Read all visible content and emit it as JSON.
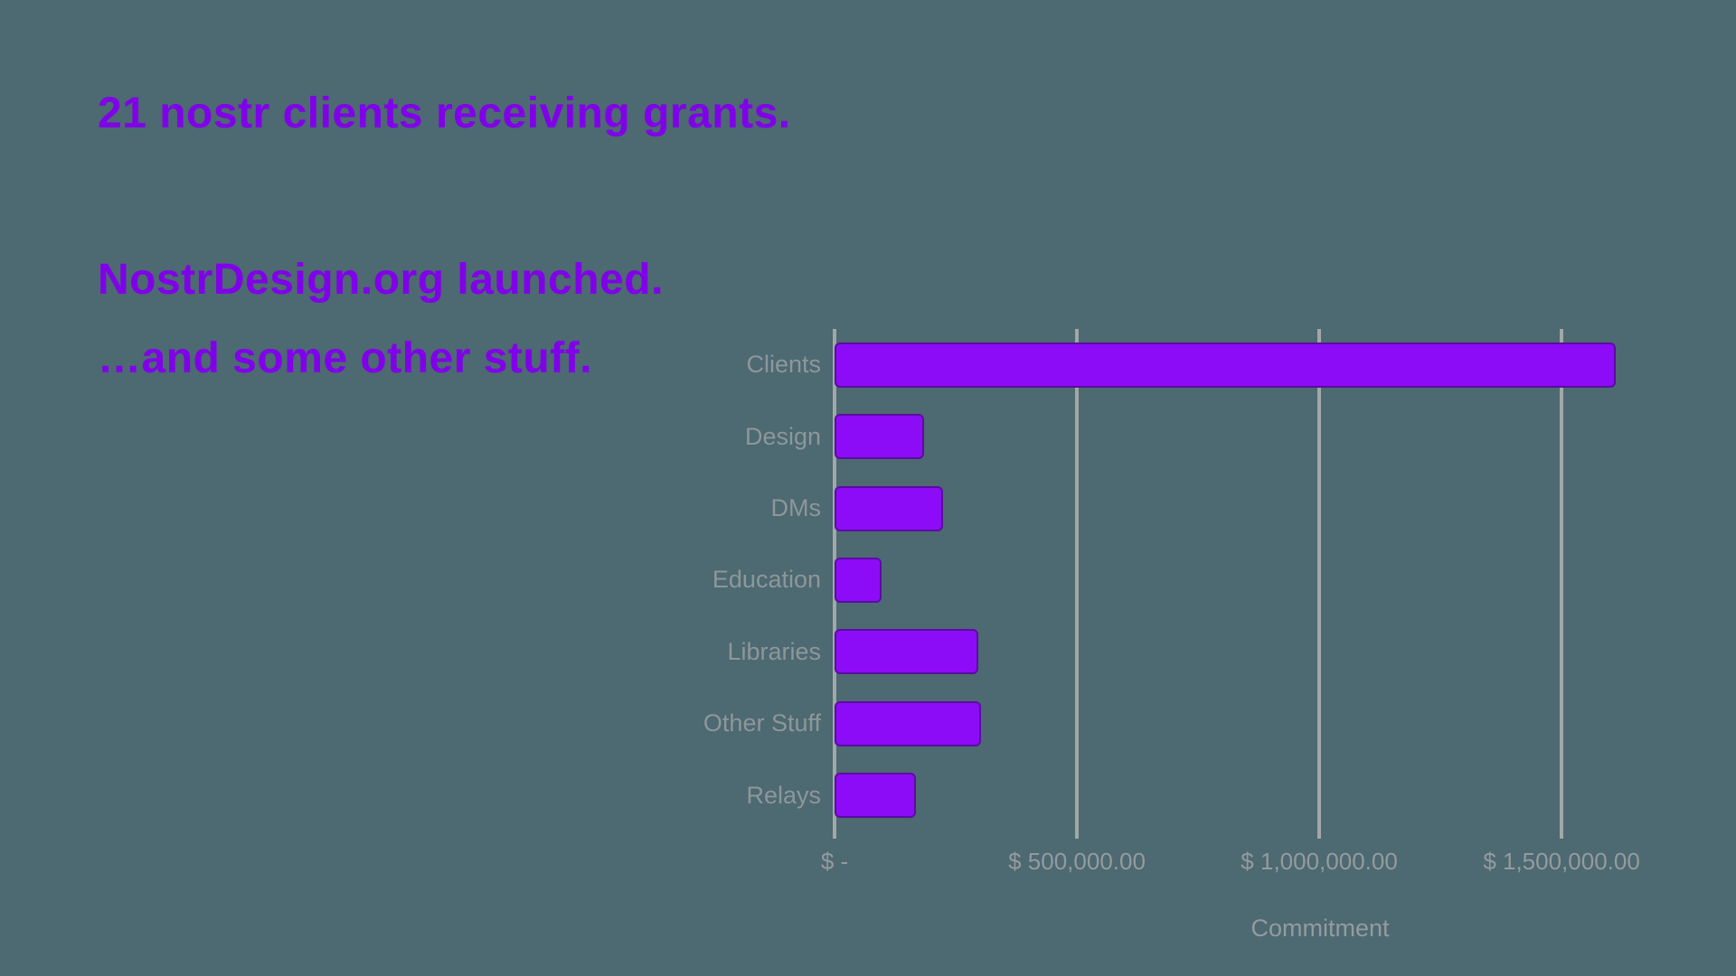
{
  "slide": {
    "headline1": "21 nostr clients receiving grants.",
    "headline2_lines": [
      "NostrDesign.org launched.",
      "…and some other stuff."
    ]
  },
  "colors": {
    "background": "#4d6972",
    "headline_purple": "#8000e9",
    "bar_fill": "#8d0cf7",
    "bar_border": "#5a0da1",
    "gridline_gray": "#a2a7a7",
    "category_label_gray": "#8d979a",
    "tick_label_gray": "#949b9e"
  },
  "chart_data": {
    "type": "bar",
    "orientation": "horizontal",
    "title": "",
    "categories": [
      "Clients",
      "Design",
      "DMs",
      "Education",
      "Libraries",
      "Other Stuff",
      "Relays"
    ],
    "values": [
      1612000,
      184000,
      224000,
      97000,
      296000,
      302000,
      168000
    ],
    "xlabel": "Commitment",
    "ylabel": "",
    "xlim": [
      0,
      1692000
    ],
    "x_ticks": [
      {
        "value": 0,
        "label": "$ -"
      },
      {
        "value": 500000,
        "label": "$ 500,000.00"
      },
      {
        "value": 1000000,
        "label": "$ 1,000,000.00"
      },
      {
        "value": 1500000,
        "label": "$ 1,500,000.00"
      }
    ],
    "grid": true,
    "legend": false
  }
}
